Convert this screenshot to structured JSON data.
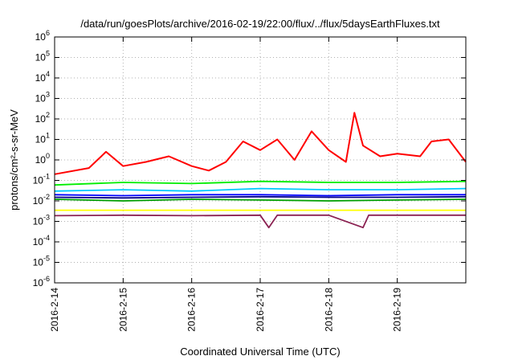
{
  "chart_data": {
    "type": "line",
    "title": "/data/run/goesPlots/archive/2016-02-19/22:00/flux/../flux/5daysEarthFluxes.txt",
    "xlabel": "Coordinated Universal Time (UTC)",
    "ylabel": "protons/cm²-s-sr-MeV",
    "yscale": "log",
    "ylim": [
      1e-06,
      1000000.0
    ],
    "xlim": [
      "2016-02-14",
      "2016-02-20"
    ],
    "x_ticks": [
      "2016-2-14",
      "2016-2-15",
      "2016-2-16",
      "2016-2-17",
      "2016-2-18",
      "2016-2-19"
    ],
    "y_ticks": [
      {
        "base": "10",
        "exp": "-6"
      },
      {
        "base": "10",
        "exp": "-5"
      },
      {
        "base": "10",
        "exp": "-4"
      },
      {
        "base": "10",
        "exp": "-3"
      },
      {
        "base": "10",
        "exp": "-2"
      },
      {
        "base": "10",
        "exp": "-1"
      },
      {
        "base": "10",
        "exp": "0"
      },
      {
        "base": "10",
        "exp": "1"
      },
      {
        "base": "10",
        "exp": "2"
      },
      {
        "base": "10",
        "exp": "3"
      },
      {
        "base": "10",
        "exp": "4"
      },
      {
        "base": "10",
        "exp": "5"
      },
      {
        "base": "10",
        "exp": "6"
      }
    ],
    "grid": true,
    "series": [
      {
        "color": "#ff0000",
        "x": [
          "2016-02-14T00:00",
          "2016-02-14T12:00",
          "2016-02-14T18:00",
          "2016-02-15T00:00",
          "2016-02-15T08:00",
          "2016-02-15T16:00",
          "2016-02-16T00:00",
          "2016-02-16T06:00",
          "2016-02-16T12:00",
          "2016-02-16T18:00",
          "2016-02-17T00:00",
          "2016-02-17T06:00",
          "2016-02-17T12:00",
          "2016-02-17T18:00",
          "2016-02-18T00:00",
          "2016-02-18T06:00",
          "2016-02-18T09:00",
          "2016-02-18T12:00",
          "2016-02-18T18:00",
          "2016-02-19T00:00",
          "2016-02-19T08:00",
          "2016-02-19T12:00",
          "2016-02-19T18:00",
          "2016-02-20T00:00"
        ],
        "y": [
          0.2,
          0.4,
          2.5,
          0.5,
          0.8,
          1.5,
          0.5,
          0.3,
          0.8,
          8,
          3,
          10,
          1,
          25,
          3,
          0.8,
          200,
          5,
          1.5,
          2,
          1.5,
          8,
          10,
          0.8
        ]
      },
      {
        "color": "#00ee00",
        "x": [
          "2016-02-14T00:00",
          "2016-02-15T00:00",
          "2016-02-16T00:00",
          "2016-02-17T00:00",
          "2016-02-18T00:00",
          "2016-02-19T00:00",
          "2016-02-20T00:00"
        ],
        "y": [
          0.06,
          0.08,
          0.07,
          0.09,
          0.08,
          0.08,
          0.09
        ]
      },
      {
        "color": "#00c8ff",
        "x": [
          "2016-02-14T00:00",
          "2016-02-15T00:00",
          "2016-02-16T00:00",
          "2016-02-17T00:00",
          "2016-02-18T00:00",
          "2016-02-19T00:00",
          "2016-02-20T00:00"
        ],
        "y": [
          0.03,
          0.035,
          0.03,
          0.04,
          0.035,
          0.035,
          0.04
        ]
      },
      {
        "color": "#0000ff",
        "x": [
          "2016-02-14T00:00",
          "2016-02-15T00:00",
          "2016-02-16T00:00",
          "2016-02-17T00:00",
          "2016-02-18T00:00",
          "2016-02-19T00:00",
          "2016-02-20T00:00"
        ],
        "y": [
          0.02,
          0.018,
          0.02,
          0.02,
          0.018,
          0.02,
          0.02
        ]
      },
      {
        "color": "#00a000",
        "x": [
          "2016-02-14T00:00",
          "2016-02-15T00:00",
          "2016-02-16T00:00",
          "2016-02-17T00:00",
          "2016-02-18T00:00",
          "2016-02-19T00:00",
          "2016-02-20T00:00"
        ],
        "y": [
          0.012,
          0.01,
          0.012,
          0.011,
          0.01,
          0.011,
          0.012
        ]
      },
      {
        "color": "#00008b",
        "x": [
          "2016-02-14T00:00",
          "2016-02-15T00:00",
          "2016-02-16T00:00",
          "2016-02-17T00:00",
          "2016-02-18T00:00",
          "2016-02-19T00:00",
          "2016-02-20T00:00"
        ],
        "y": [
          0.015,
          0.014,
          0.015,
          0.016,
          0.015,
          0.015,
          0.016
        ]
      },
      {
        "color": "#ffff00",
        "x": [
          "2016-02-14T00:00",
          "2016-02-15T00:00",
          "2016-02-16T00:00",
          "2016-02-17T00:00",
          "2016-02-18T00:00",
          "2016-02-19T00:00",
          "2016-02-20T00:00"
        ],
        "y": [
          0.0035,
          0.0035,
          0.0035,
          0.0035,
          0.0035,
          0.0035,
          0.0035
        ]
      },
      {
        "color": "#8b2252",
        "x": [
          "2016-02-14T00:00",
          "2016-02-15T00:00",
          "2016-02-16T00:00",
          "2016-02-17T00:00",
          "2016-02-17T03:00",
          "2016-02-17T06:00",
          "2016-02-18T00:00",
          "2016-02-18T12:00",
          "2016-02-18T14:00",
          "2016-02-19T00:00",
          "2016-02-20T00:00"
        ],
        "y": [
          0.0019,
          0.002,
          0.0019,
          0.002,
          0.0005,
          0.002,
          0.002,
          0.0005,
          0.002,
          0.002,
          0.002
        ]
      }
    ]
  }
}
